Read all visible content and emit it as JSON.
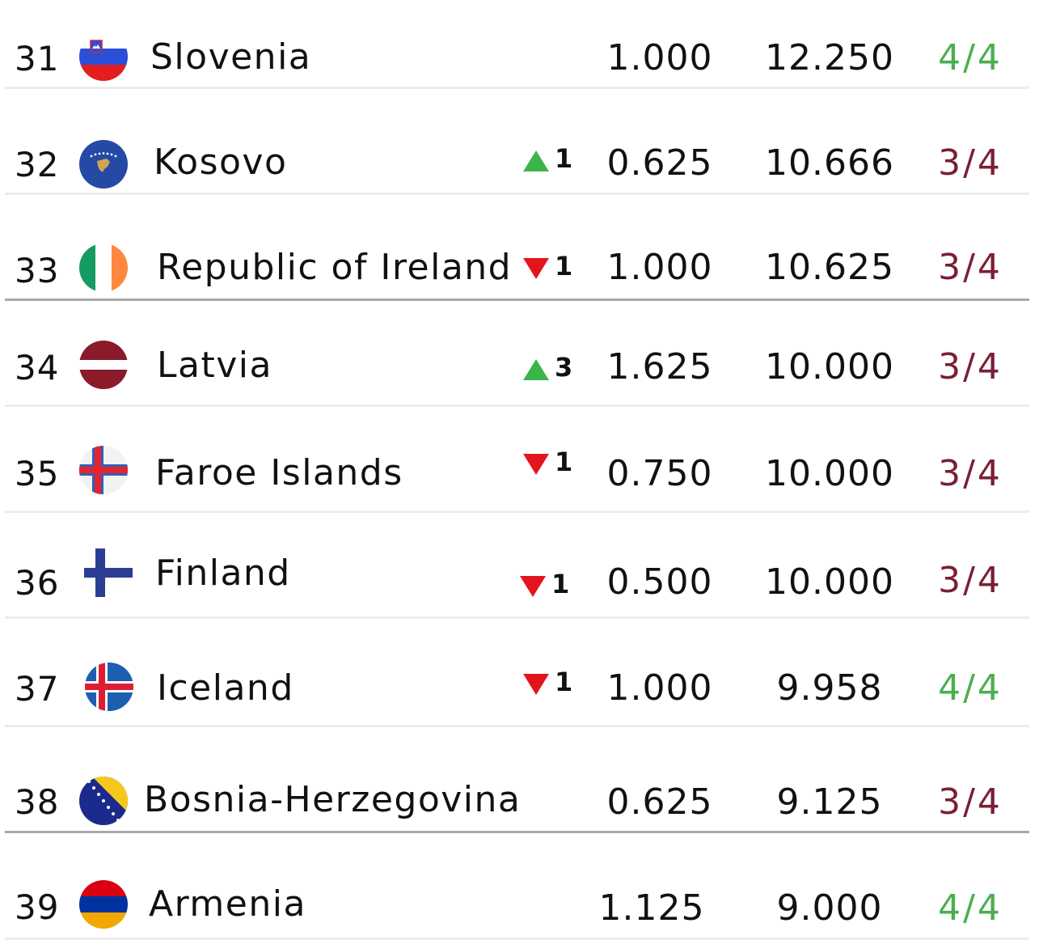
{
  "colors": {
    "complete_green": "#4cae4f",
    "incomplete_maroon": "#7a1f33",
    "arrow_up_green": "#3bb54a",
    "arrow_down_red": "#e3151c",
    "divider_light": "#ececec",
    "divider_zone": "#a9a9a9"
  },
  "rows": [
    {
      "rank": "31",
      "flag_icon": "slovenia-flag-icon",
      "team": "Slovenia",
      "movement": null,
      "coefficient": "1.000",
      "total": "12.250",
      "games": "4/4",
      "games_complete": true
    },
    {
      "rank": "32",
      "flag_icon": "kosovo-flag-icon",
      "team": "Kosovo",
      "movement": {
        "direction": "up",
        "amount": "1"
      },
      "coefficient": "0.625",
      "total": "10.666",
      "games": "3/4",
      "games_complete": false
    },
    {
      "rank": "33",
      "flag_icon": "ireland-flag-icon",
      "team": "Republic of Ireland",
      "movement": {
        "direction": "down",
        "amount": "1"
      },
      "coefficient": "1.000",
      "total": "10.625",
      "games": "3/4",
      "games_complete": false
    },
    {
      "rank": "34",
      "flag_icon": "latvia-flag-icon",
      "team": "Latvia",
      "movement": {
        "direction": "up",
        "amount": "3"
      },
      "coefficient": "1.625",
      "total": "10.000",
      "games": "3/4",
      "games_complete": false
    },
    {
      "rank": "35",
      "flag_icon": "faroe-islands-flag-icon",
      "team": "Faroe Islands",
      "movement": {
        "direction": "down",
        "amount": "1"
      },
      "coefficient": "0.750",
      "total": "10.000",
      "games": "3/4",
      "games_complete": false
    },
    {
      "rank": "36",
      "flag_icon": "finland-flag-icon",
      "team": "Finland",
      "movement": {
        "direction": "down",
        "amount": "1"
      },
      "coefficient": "0.500",
      "total": "10.000",
      "games": "3/4",
      "games_complete": false
    },
    {
      "rank": "37",
      "flag_icon": "iceland-flag-icon",
      "team": "Iceland",
      "movement": {
        "direction": "down",
        "amount": "1"
      },
      "coefficient": "1.000",
      "total": "9.958",
      "games": "4/4",
      "games_complete": true
    },
    {
      "rank": "38",
      "flag_icon": "bosnia-herzegovina-flag-icon",
      "team": "Bosnia-Herzegovina",
      "movement": null,
      "coefficient": "0.625",
      "total": "9.125",
      "games": "3/4",
      "games_complete": false
    },
    {
      "rank": "39",
      "flag_icon": "armenia-flag-icon",
      "team": "Armenia",
      "movement": null,
      "coefficient": "1.125",
      "total": "9.000",
      "games": "4/4",
      "games_complete": true
    }
  ]
}
